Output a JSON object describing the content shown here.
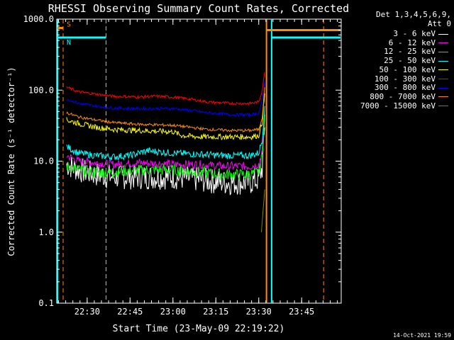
{
  "chart_data": {
    "type": "line",
    "title": "RHESSI Observing Summary Count Rates, Corrected",
    "xlabel": "Start Time (23-May-09 22:19:22)",
    "ylabel": "Corrected Count Rate (s⁻¹ detector⁻¹)",
    "yscale": "log",
    "ylim": [
      0.1,
      1000
    ],
    "xlim": [
      22.3228,
      23.9806
    ],
    "x_unit": "hours UT",
    "y_ticks": [
      "0.1",
      "1.0",
      "10.0",
      "100.0",
      "1000.0"
    ],
    "x_ticks": [
      {
        "value": 22.5,
        "label": "22:30"
      },
      {
        "value": 22.75,
        "label": "22:45"
      },
      {
        "value": 23.0,
        "label": "23:00"
      },
      {
        "value": 23.25,
        "label": "23:15"
      },
      {
        "value": 23.5,
        "label": "23:30"
      },
      {
        "value": 23.75,
        "label": "23:45"
      }
    ],
    "detector_label": "Det 1,3,4,5,6,9,\nAtt 0",
    "series": [
      {
        "name": "3 - 6 keV",
        "color": "#ffffff",
        "noise": 0.18,
        "x": [
          22.38,
          22.45,
          22.55,
          22.65,
          22.8,
          23.0,
          23.15,
          23.3,
          23.45,
          23.5,
          23.52,
          23.535
        ],
        "y": [
          9,
          7.5,
          6.5,
          6,
          6,
          6,
          5.5,
          5,
          5,
          5.5,
          8,
          30
        ]
      },
      {
        "name": "6 - 12 keV",
        "color": "#ff00ff",
        "noise": 0.06,
        "x": [
          22.38,
          22.45,
          22.55,
          22.65,
          22.8,
          23.0,
          23.15,
          23.3,
          23.45,
          23.5,
          23.52,
          23.535
        ],
        "y": [
          12,
          10,
          9.5,
          9,
          9.5,
          9,
          9,
          8.5,
          8.5,
          9,
          14,
          40
        ]
      },
      {
        "name": "12 - 25 keV",
        "color": "#00ff00",
        "noise": 0.08,
        "x": [
          22.38,
          22.45,
          22.55,
          22.65,
          22.8,
          23.0,
          23.15,
          23.3,
          23.45,
          23.5,
          23.52,
          23.535
        ],
        "y": [
          8.5,
          7.5,
          7,
          7,
          7.5,
          7.5,
          7,
          6.5,
          6.5,
          7,
          12,
          45
        ]
      },
      {
        "name": "25 - 50 keV",
        "color": "#00ffff",
        "noise": 0.05,
        "x": [
          22.38,
          22.45,
          22.55,
          22.65,
          22.75,
          22.85,
          23.0,
          23.15,
          23.3,
          23.45,
          23.5,
          23.52,
          23.535
        ],
        "y": [
          16,
          13,
          12,
          11.5,
          12,
          14,
          13,
          12.5,
          12,
          12,
          13,
          20,
          60
        ]
      },
      {
        "name": "50 - 100 keV",
        "color": "#ffff00",
        "noise": 0.04,
        "x": [
          22.38,
          22.45,
          22.55,
          22.65,
          22.8,
          23.0,
          23.05,
          23.15,
          23.3,
          23.45,
          23.5,
          23.52,
          23.535
        ],
        "y": [
          38,
          34,
          30,
          28,
          27,
          26,
          23,
          22,
          22,
          22,
          23,
          35,
          90
        ]
      },
      {
        "name": "100 - 300 keV",
        "color": "#ff0000",
        "noise": 0.02,
        "x": [
          22.38,
          22.45,
          22.55,
          22.65,
          22.8,
          22.9,
          23.0,
          23.1,
          23.2,
          23.35,
          23.45,
          23.5,
          23.52,
          23.535
        ],
        "y": [
          110,
          95,
          88,
          82,
          80,
          82,
          80,
          75,
          68,
          65,
          65,
          68,
          100,
          180
        ]
      },
      {
        "name": "300 - 800 keV",
        "color": "#0000ff",
        "noise": 0.02,
        "x": [
          22.38,
          22.45,
          22.55,
          22.65,
          22.8,
          23.0,
          23.1,
          23.2,
          23.35,
          23.45,
          23.5,
          23.52,
          23.535
        ],
        "y": [
          75,
          65,
          60,
          56,
          55,
          55,
          52,
          48,
          45,
          45,
          47,
          70,
          140
        ]
      },
      {
        "name": "800 - 7000 keV",
        "color": "#ff8c00",
        "noise": 0.02,
        "x": [
          22.38,
          22.45,
          22.55,
          22.65,
          22.8,
          23.0,
          23.1,
          23.2,
          23.35,
          23.45,
          23.5,
          23.52,
          23.535
        ],
        "y": [
          48,
          42,
          38,
          35,
          33,
          32,
          30,
          28,
          27,
          27,
          28,
          42,
          110
        ]
      },
      {
        "name": "7000 - 15000 keV",
        "color": "#808000",
        "noise": 0.0,
        "x": [
          23.515,
          23.52,
          23.525,
          23.53,
          23.535
        ],
        "y": [
          1.0,
          1.4,
          2.0,
          2.8,
          4.0
        ]
      }
    ],
    "bars": [
      {
        "label": "S",
        "color": "#ff8c00",
        "y": 750,
        "x0": 22.323,
        "x1": 22.36
      },
      {
        "label": "N",
        "color": "#00ffff",
        "y": 550,
        "x0": 22.323,
        "x1": 22.61
      },
      {
        "label": "",
        "color": "#ff8c00",
        "y": 700,
        "x0": 23.545,
        "x1": 23.98
      },
      {
        "label": "",
        "color": "#00ffff",
        "y": 550,
        "x0": 23.575,
        "x1": 23.98
      }
    ],
    "vlines": [
      {
        "x": 22.328,
        "color": "#00ffff",
        "style": "solid"
      },
      {
        "x": 22.36,
        "color": "#ff8c00",
        "style": "dashed"
      },
      {
        "x": 22.61,
        "color": "#00ffff",
        "style": "dashed"
      },
      {
        "x": 23.545,
        "color": "#ff8c00",
        "style": "solid"
      },
      {
        "x": 23.575,
        "color": "#00ffff",
        "style": "solid"
      },
      {
        "x": 23.878,
        "color": "#ff8c00",
        "style": "dashed"
      }
    ]
  },
  "timestamp": "14-Oct-2021 19:59"
}
